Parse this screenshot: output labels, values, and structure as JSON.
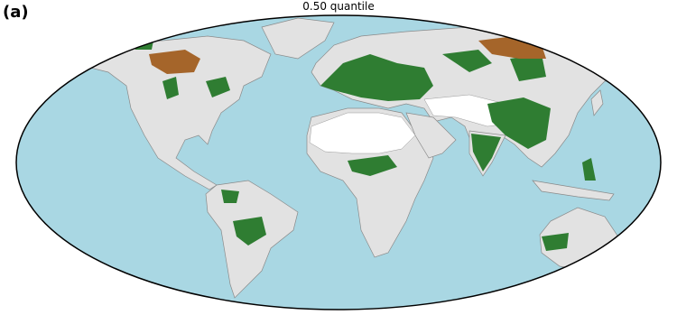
{
  "panel_label": "(a)",
  "title": "0.50 quantile"
}
